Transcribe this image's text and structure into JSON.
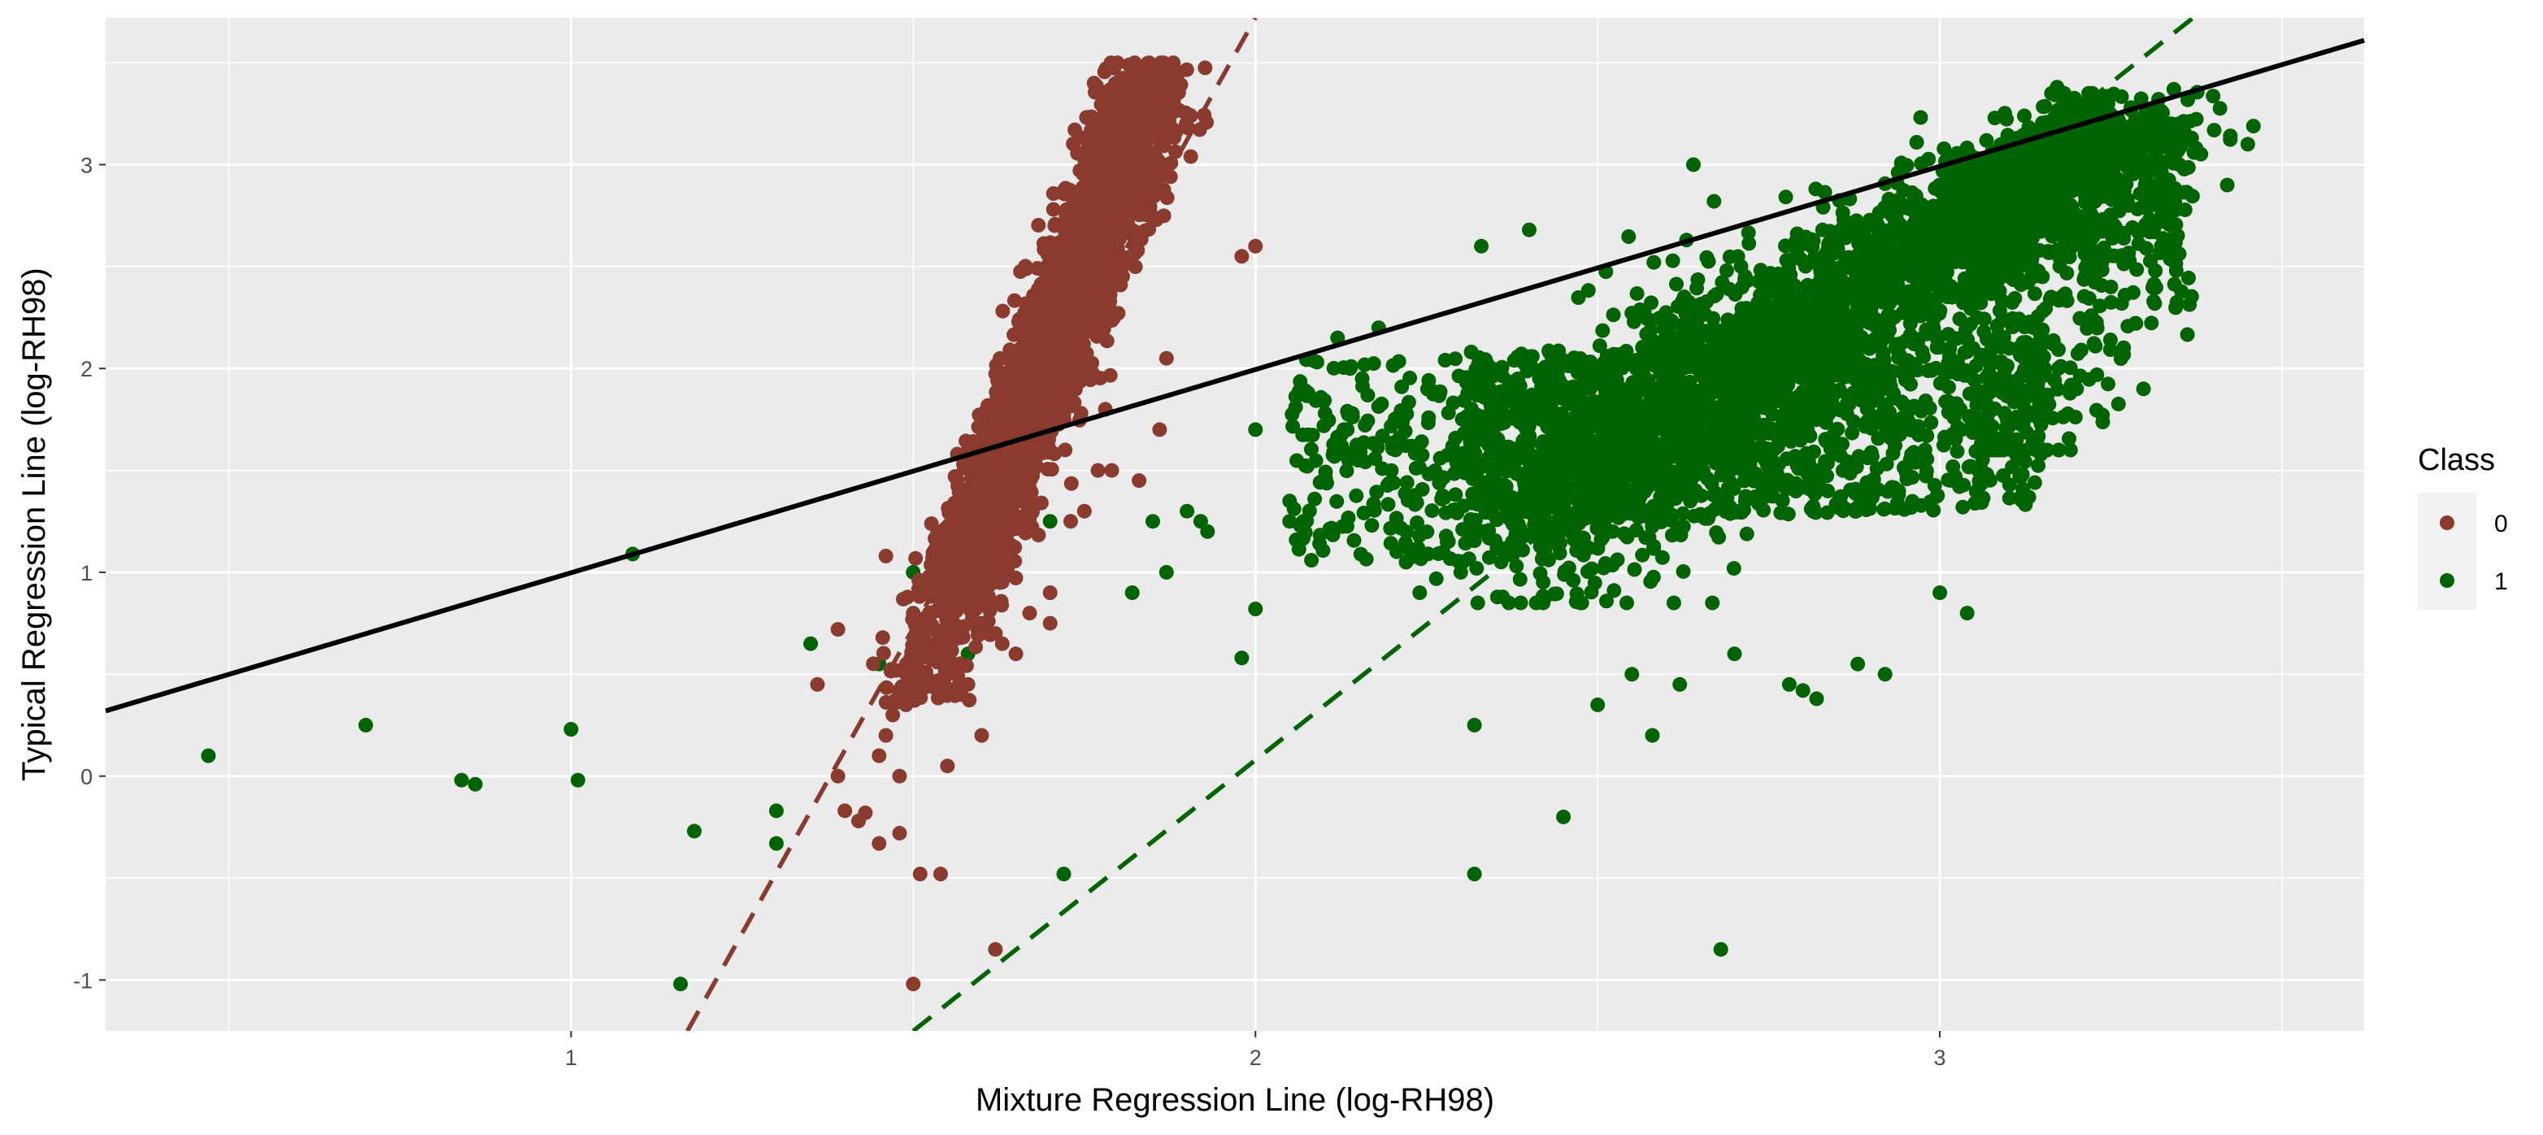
{
  "chart_data": {
    "type": "scatter",
    "xlabel": "Mixture Regression Line (log-RH98)",
    "ylabel": "Typical Regression Line (log-RH98)",
    "xlim": [
      0.32,
      3.62
    ],
    "ylim": [
      -1.25,
      3.72
    ],
    "x_ticks": [
      1,
      2,
      3
    ],
    "y_ticks": [
      -1,
      0,
      1,
      2,
      3
    ],
    "grid": true,
    "legend": {
      "title": "Class",
      "position": "right"
    },
    "series": [
      {
        "name": "0",
        "color": "#8B3A2E",
        "cluster": {
          "x_range": [
            1.5,
            1.9
          ],
          "y_range": [
            0.6,
            3.5
          ],
          "trend": "steep positive"
        },
        "points": [
          [
            1.55,
            1.1
          ],
          [
            1.52,
            0.95
          ],
          [
            1.5,
            0.8
          ],
          [
            1.49,
            0.55
          ],
          [
            1.48,
            0.4
          ],
          [
            1.47,
            0.3
          ],
          [
            1.46,
            0.2
          ],
          [
            1.45,
            0.1
          ],
          [
            1.48,
            0.0
          ],
          [
            1.55,
            0.05
          ],
          [
            1.57,
            0.4
          ],
          [
            1.6,
            0.2
          ],
          [
            1.65,
            0.6
          ],
          [
            1.7,
            0.75
          ],
          [
            1.73,
            1.25
          ],
          [
            1.79,
            1.5
          ],
          [
            1.83,
            1.45
          ],
          [
            1.86,
            1.7
          ],
          [
            1.87,
            2.05
          ],
          [
            1.98,
            2.55
          ],
          [
            2.0,
            2.6
          ],
          [
            1.88,
            3.5
          ],
          [
            1.43,
            -0.18
          ],
          [
            1.45,
            -0.33
          ],
          [
            1.48,
            -0.28
          ],
          [
            1.5,
            -1.02
          ],
          [
            1.51,
            -0.48
          ],
          [
            1.54,
            -0.48
          ],
          [
            1.62,
            -0.85
          ],
          [
            1.58,
            0.45
          ],
          [
            1.4,
            -0.17
          ],
          [
            1.42,
            -0.22
          ],
          [
            1.39,
            0.0
          ],
          [
            1.36,
            0.45
          ],
          [
            1.39,
            0.72
          ],
          [
            1.46,
            1.08
          ],
          [
            1.62,
            0.7
          ],
          [
            1.63,
            0.65
          ],
          [
            1.67,
            0.8
          ],
          [
            1.7,
            0.9
          ],
          [
            1.75,
            1.3
          ],
          [
            1.77,
            1.5
          ]
        ]
      },
      {
        "name": "1",
        "color": "#006400",
        "cluster": {
          "x_range": [
            2.25,
            3.35
          ],
          "y_range": [
            0.8,
            3.4
          ],
          "trend": "positive"
        },
        "points": [
          [
            0.47,
            0.1
          ],
          [
            0.7,
            0.25
          ],
          [
            0.84,
            -0.02
          ],
          [
            0.86,
            -0.04
          ],
          [
            1.0,
            0.23
          ],
          [
            1.01,
            -0.02
          ],
          [
            1.09,
            1.09
          ],
          [
            1.16,
            -1.02
          ],
          [
            1.18,
            -0.27
          ],
          [
            1.3,
            -0.17
          ],
          [
            1.3,
            -0.33
          ],
          [
            1.5,
            1.0
          ],
          [
            1.58,
            0.6
          ],
          [
            1.6,
            0.75
          ],
          [
            1.72,
            -0.48
          ],
          [
            1.82,
            0.9
          ],
          [
            1.85,
            1.25
          ],
          [
            1.87,
            1.0
          ],
          [
            1.92,
            1.25
          ],
          [
            1.98,
            0.58
          ],
          [
            2.0,
            0.82
          ],
          [
            2.05,
            1.25
          ],
          [
            2.07,
            1.25
          ],
          [
            2.12,
            2.15
          ],
          [
            2.18,
            2.2
          ],
          [
            2.3,
            1.0
          ],
          [
            2.32,
            0.25
          ],
          [
            2.32,
            -0.48
          ],
          [
            2.33,
            2.6
          ],
          [
            2.4,
            2.68
          ],
          [
            2.45,
            -0.2
          ],
          [
            2.58,
            0.2
          ],
          [
            2.64,
            3.0
          ],
          [
            2.67,
            2.82
          ],
          [
            2.68,
            -0.85
          ],
          [
            2.78,
            0.45
          ],
          [
            2.8,
            0.42
          ],
          [
            2.82,
            0.38
          ],
          [
            2.92,
            0.5
          ],
          [
            3.04,
            0.8
          ],
          [
            3.15,
            2.45
          ],
          [
            3.3,
            2.9
          ],
          [
            3.35,
            3.0
          ],
          [
            3.42,
            2.9
          ],
          [
            3.45,
            3.1
          ],
          [
            3.2,
            1.9
          ],
          [
            3.1,
            1.65
          ],
          [
            3.25,
            2.4
          ],
          [
            1.7,
            1.25
          ],
          [
            1.55,
            0.5
          ],
          [
            1.45,
            0.55
          ],
          [
            1.35,
            0.65
          ],
          [
            1.9,
            1.3
          ],
          [
            2.0,
            1.7
          ],
          [
            1.93,
            1.2
          ],
          [
            2.15,
            1.55
          ],
          [
            2.05,
            1.35
          ],
          [
            2.22,
            1.05
          ],
          [
            2.28,
            1.15
          ],
          [
            2.24,
            0.9
          ],
          [
            2.5,
            0.35
          ],
          [
            2.55,
            0.5
          ],
          [
            2.62,
            0.45
          ],
          [
            2.7,
            0.6
          ],
          [
            2.88,
            0.55
          ],
          [
            3.0,
            0.9
          ]
        ]
      }
    ],
    "lines": [
      {
        "name": "",
        "style": "solid",
        "color": "#000000",
        "x": [
          0.32,
          3.62
        ],
        "y": [
          0.32,
          3.61
        ]
      },
      {
        "name": "",
        "style": "dashed",
        "color": "#8B3A2E",
        "x": [
          1.17,
          2.0
        ],
        "y": [
          -1.25,
          3.72
        ]
      },
      {
        "name": "",
        "style": "dashed",
        "color": "#006400",
        "x": [
          1.5,
          3.37
        ],
        "y": [
          -1.25,
          3.72
        ]
      }
    ]
  }
}
